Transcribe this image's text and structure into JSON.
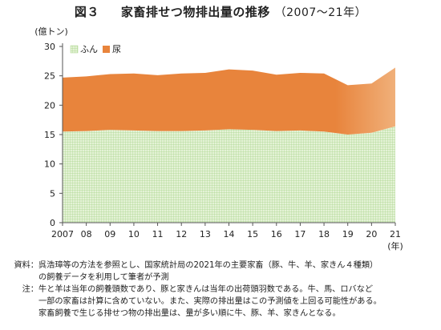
{
  "header": {
    "figure_label": "図３",
    "title": "家畜排せつ物排出量の推移",
    "period": "（2007〜21年）"
  },
  "chart_data": {
    "type": "area",
    "stacked": true,
    "y_unit_label": "(億トン)",
    "x_unit_label": "(年)",
    "ylim": [
      0,
      30
    ],
    "y_ticks": [
      0,
      5,
      10,
      15,
      20,
      25,
      30
    ],
    "grid": false,
    "legend_position": "top-left",
    "categories": [
      "2007",
      "08",
      "09",
      "10",
      "11",
      "12",
      "13",
      "14",
      "15",
      "16",
      "17",
      "18",
      "19",
      "20",
      "21"
    ],
    "series": [
      {
        "name": "ふん",
        "color": "#c9e6b0",
        "pattern": "grid",
        "values": [
          15.5,
          15.6,
          15.8,
          15.7,
          15.6,
          15.6,
          15.7,
          15.9,
          15.8,
          15.6,
          15.7,
          15.5,
          15.0,
          15.3,
          16.4
        ]
      },
      {
        "name": "尿",
        "color": "#e8843c",
        "values": [
          9.2,
          9.3,
          9.5,
          9.7,
          9.5,
          9.8,
          9.8,
          10.2,
          10.1,
          9.6,
          9.8,
          9.9,
          8.4,
          8.4,
          10.0
        ]
      }
    ],
    "projection_color": "#f0b07a"
  },
  "notes": {
    "source_label": "資料：",
    "source_line1": "呉浩璋等の方法を参照とし、国家統計局の2021年の主要家畜（豚、牛、羊、家きん４種類）",
    "source_line2": "の飼養データを利用して筆者が予測",
    "note_label": "注：",
    "note_line1": "牛と羊は当年の飼養頭数であり、豚と家きんは当年の出荷頭羽数である。牛、馬、ロバなど",
    "note_line2": "一部の家畜は計算に含めていない。また、実際の排出量はこの予測値を上回る可能性がある。",
    "note_line3": "家畜飼養で生じる排せつ物の排出量は、量が多い順に牛、豚、羊、家きんとなる。"
  }
}
